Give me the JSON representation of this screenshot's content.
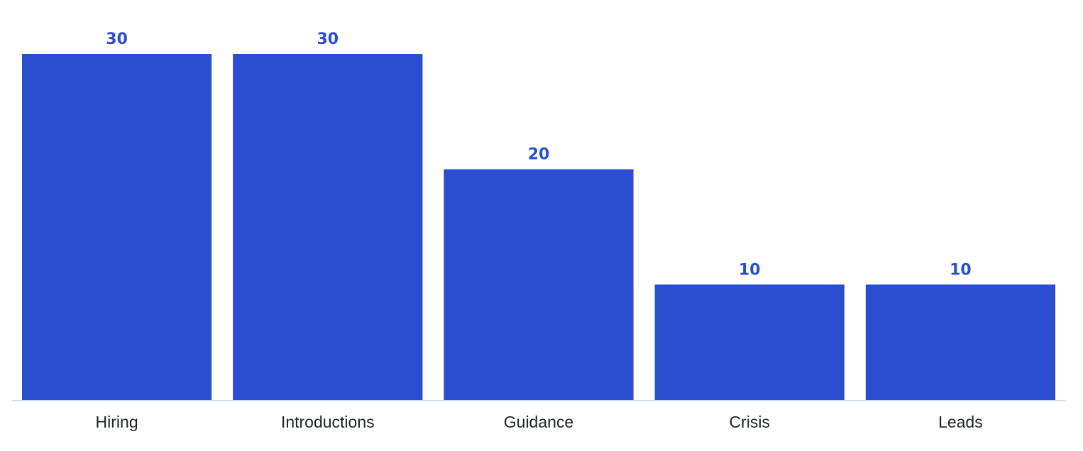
{
  "chart_data": {
    "type": "bar",
    "title": "",
    "xlabel": "",
    "ylabel": "",
    "categories": [
      "Hiring",
      "Introductions",
      "Guidance",
      "Crisis",
      "Leads"
    ],
    "values": [
      30,
      30,
      20,
      10,
      10
    ],
    "data_labels": [
      "30",
      "30",
      "20",
      "10",
      "10"
    ],
    "ylim": [
      0,
      30
    ],
    "grid": false,
    "legend": "none",
    "colors": {
      "bar": "#2b4ed0",
      "value_label": "#2b4ed0",
      "axis_line": "#c9d3e6",
      "category_label": "#1f2328"
    }
  }
}
